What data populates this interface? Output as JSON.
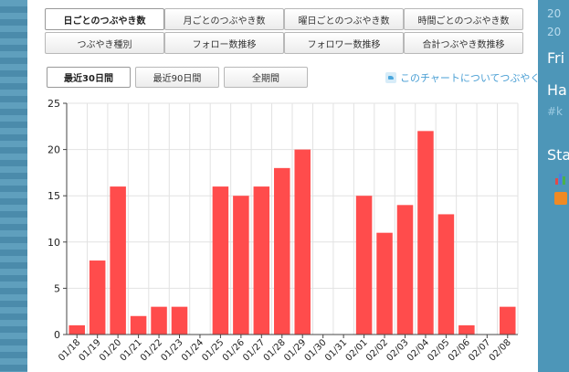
{
  "tabs_row1": [
    "日ごとのつぶやき数",
    "月ごとのつぶやき数",
    "曜日ごとのつぶやき数",
    "時間ごとのつぶやき数"
  ],
  "tabs_row2": [
    "つぶやき種別",
    "フォロー数推移",
    "フォロワー数推移",
    "合計つぶやき数推移"
  ],
  "range_buttons": [
    "最近30日間",
    "最近90日間",
    "全期間"
  ],
  "share_text": "このチャートについてつぶやく",
  "sidebar": {
    "top_lines": [
      "20",
      "20"
    ],
    "fri": "Fri",
    "ha": "Ha",
    "hash": "#k",
    "sta": "Sta"
  },
  "colors": {
    "bar": "#ff4c4c",
    "link": "#4a9fd4",
    "sidebar_bg": "#4d96b8"
  },
  "chart_data": {
    "type": "bar",
    "categories": [
      "01/18",
      "01/19",
      "01/20",
      "01/21",
      "01/22",
      "01/23",
      "01/24",
      "01/25",
      "01/26",
      "01/27",
      "01/28",
      "01/29",
      "01/30",
      "01/31",
      "02/01",
      "02/02",
      "02/03",
      "02/04",
      "02/05",
      "02/06",
      "02/07",
      "02/08"
    ],
    "values": [
      1,
      8,
      16,
      2,
      3,
      3,
      0,
      16,
      15,
      16,
      18,
      20,
      0,
      0,
      15,
      11,
      14,
      22,
      13,
      1,
      0,
      3
    ],
    "ylim": [
      0,
      25
    ],
    "yticks": [
      0,
      5,
      10,
      15,
      20,
      25
    ],
    "grid": true
  }
}
